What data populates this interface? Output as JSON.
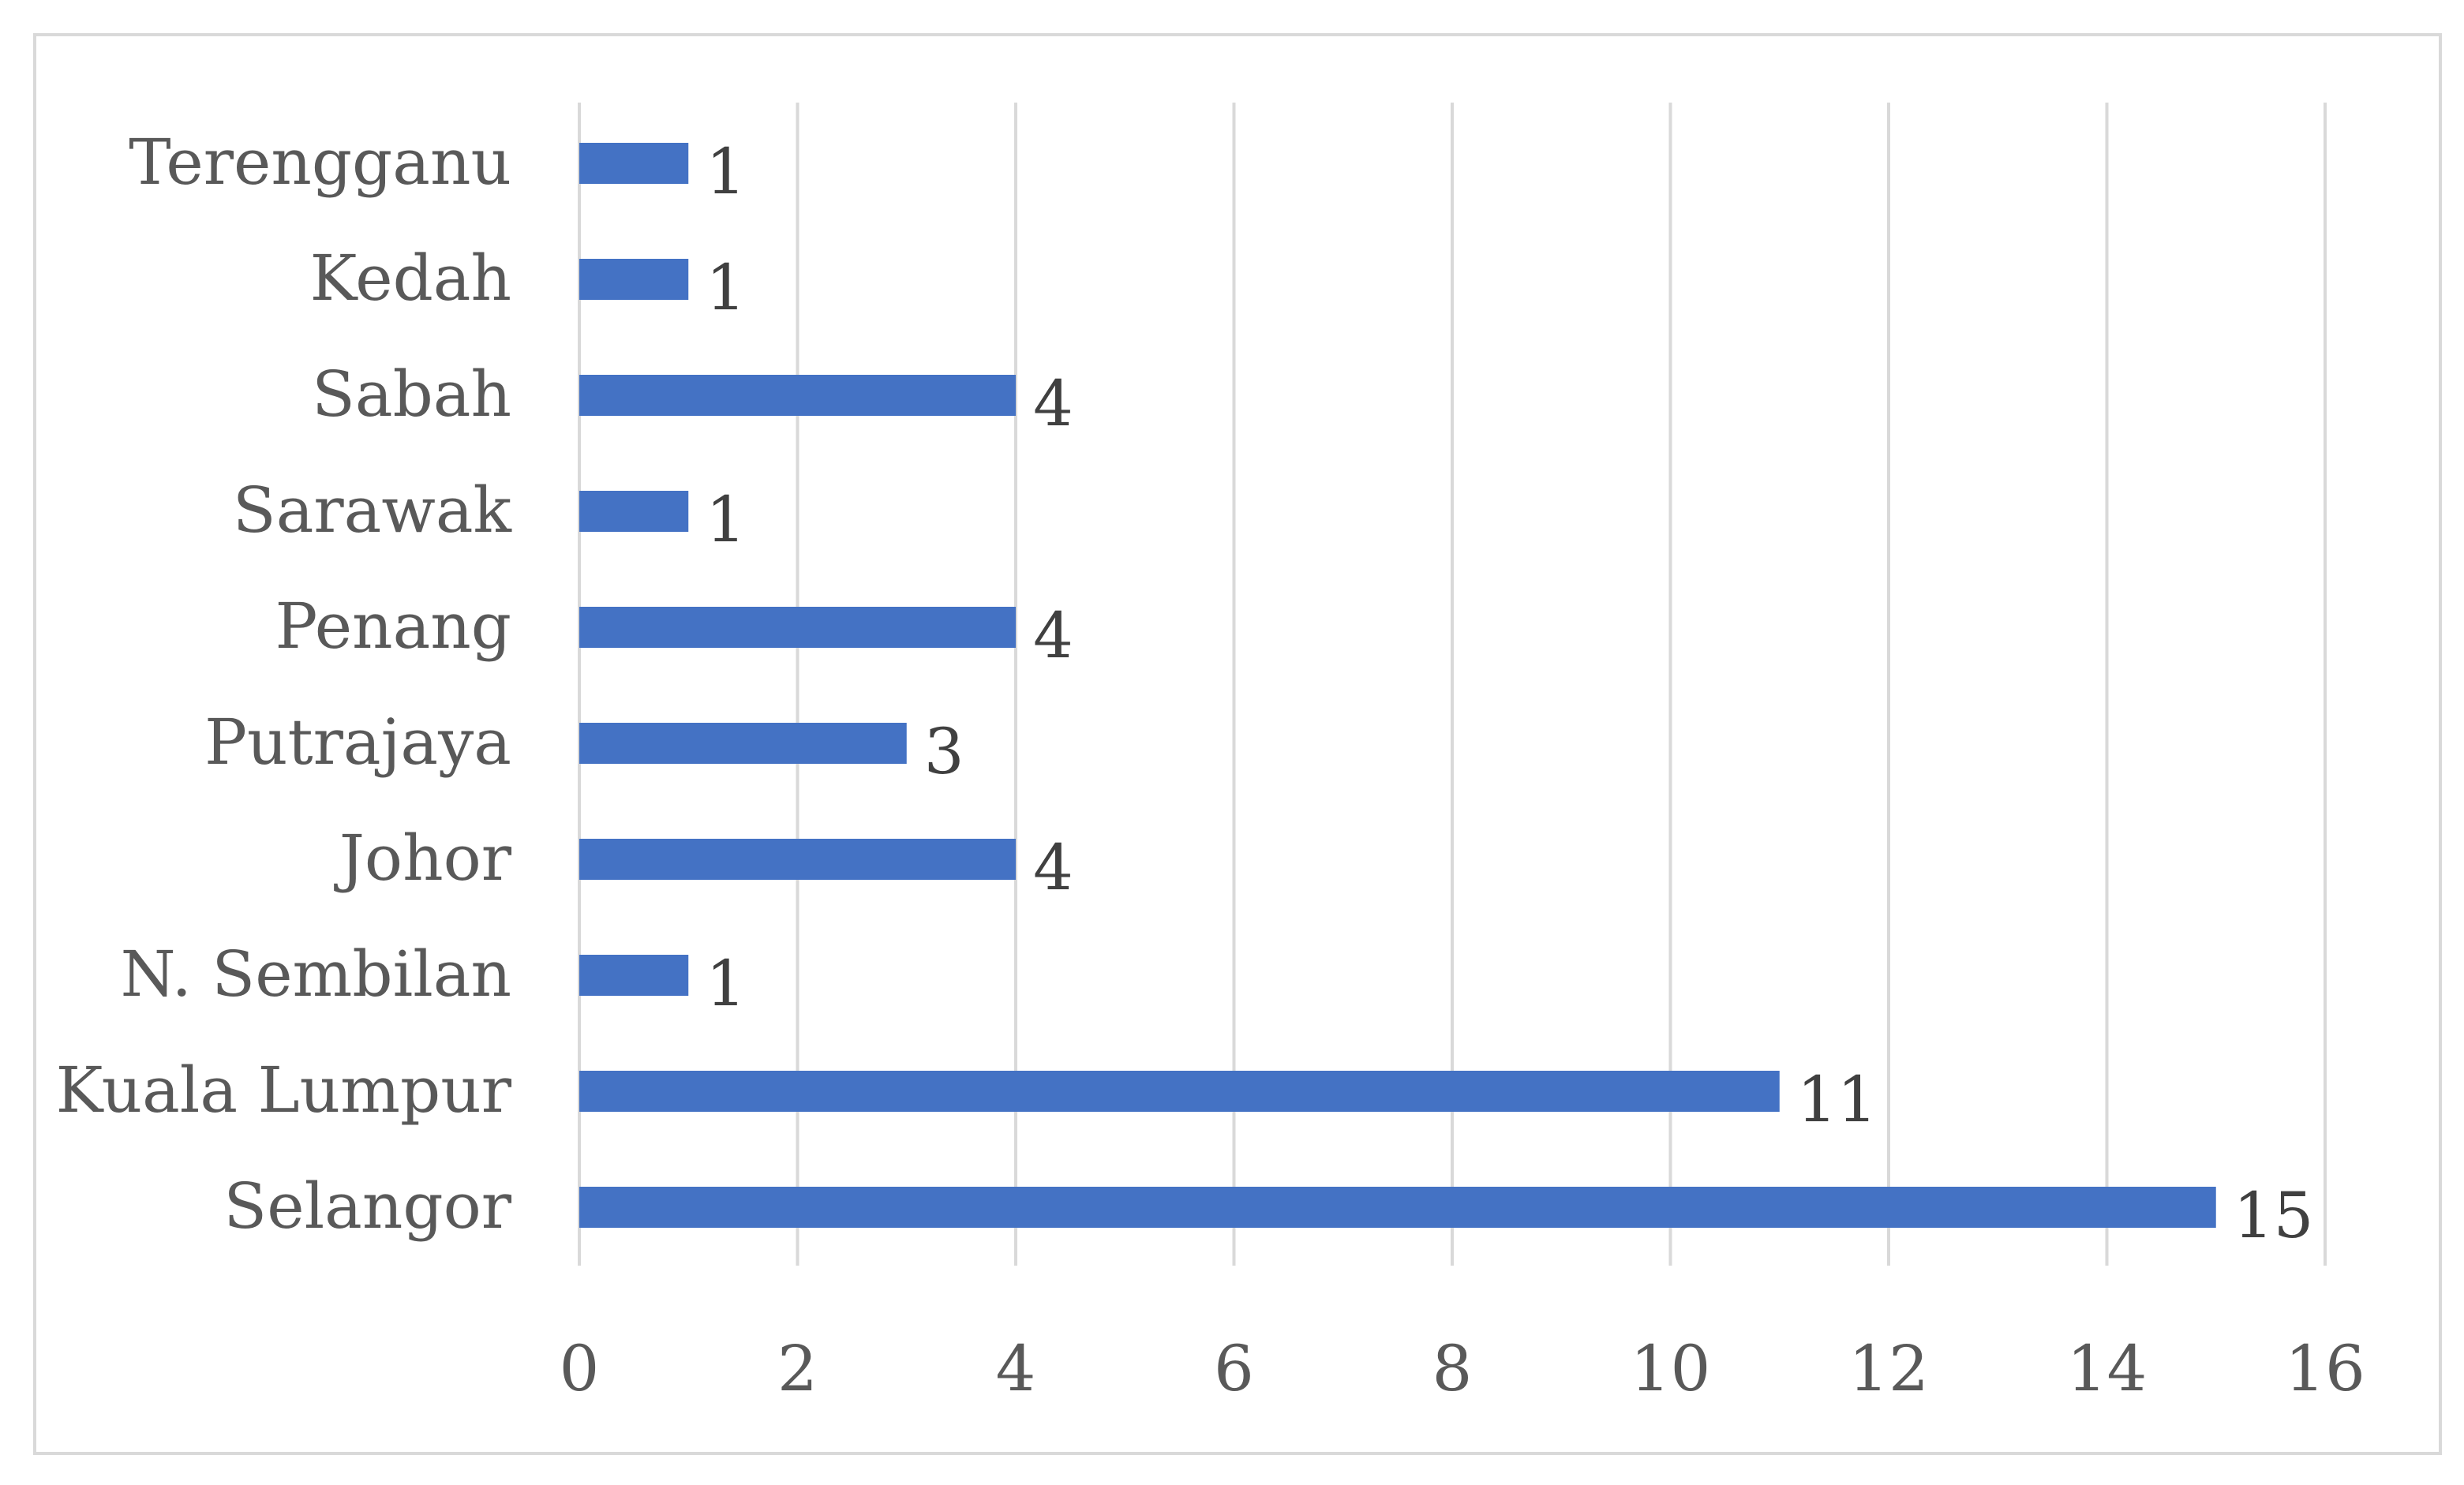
{
  "chart_data": {
    "type": "bar",
    "orientation": "horizontal",
    "categories": [
      "Terengganu",
      "Kedah",
      "Sabah",
      "Sarawak",
      "Penang",
      "Putrajaya",
      "Johor",
      "N. Sembilan",
      "Kuala Lumpur",
      "Selangor"
    ],
    "values": [
      1,
      1,
      4,
      1,
      4,
      3,
      4,
      1,
      11,
      15
    ],
    "xlim": [
      0,
      16
    ],
    "xticks": [
      0,
      2,
      4,
      6,
      8,
      10,
      12,
      14,
      16
    ],
    "xtick_labels": [
      "0",
      "2",
      "4",
      "6",
      "8",
      "10",
      "12",
      "14",
      "16"
    ],
    "grid": "vertical",
    "data_labels": true,
    "bar_color": "#4472C4",
    "title": "",
    "xlabel": "",
    "ylabel": ""
  }
}
